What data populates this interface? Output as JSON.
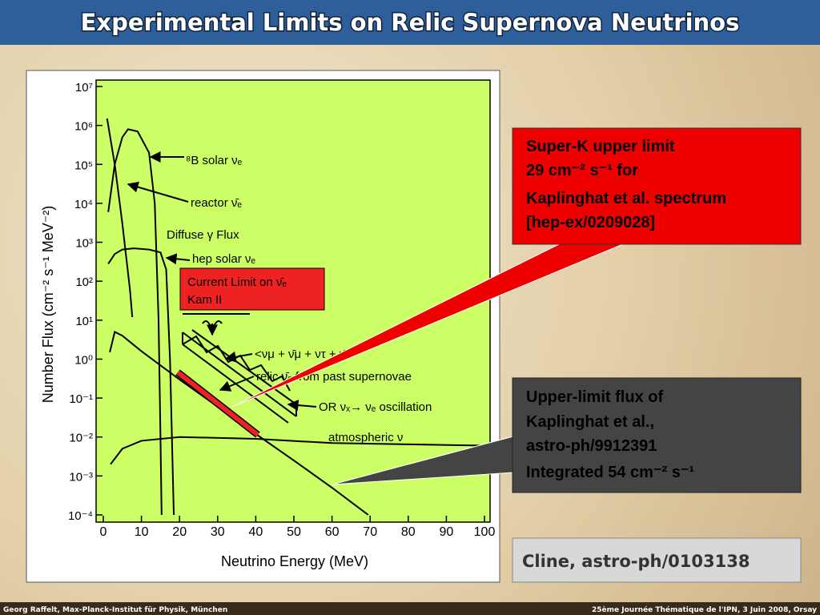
{
  "slide": {
    "title": "Experimental Limits on Relic Supernova Neutrinos",
    "callout_superk": [
      "Super-K  upper limit",
      "29 cm⁻² s⁻¹   for",
      "Kaplinghat et al. spectrum",
      "[hep-ex/0209028]"
    ],
    "callout_upper": [
      "Upper-limit flux of",
      "Kaplinghat et al.,",
      "astro-ph/9912391",
      "Integrated 54 cm⁻² s⁻¹"
    ],
    "citation": "Cline, astro-ph/0103138",
    "footer_left": "Georg Raffelt, Max-Planck-Institut für Physik, München",
    "footer_right": "25ème Journée Thématique de l'IPN, 3 Juin 2008, Orsay"
  },
  "chart_data": {
    "type": "line",
    "x_label": "Neutrino Energy (MeV)",
    "y_label": "Number Flux (cm⁻² s⁻¹ MeV⁻²)",
    "annotations": [
      "⁸B solar νₑ",
      "reactor ν̄ₑ",
      "Diffuse γ Flux",
      "hep solar νₑ",
      "Current Limit on ν̄ₑ",
      "Kam II",
      "<νμ + ν̄μ + ντ + ν̄τ>",
      "relic ν̄ₑ from past supernovae",
      "OR νₓ→ νₑ oscillation",
      "atmospheric ν"
    ],
    "xlim": [
      0,
      100
    ],
    "ylim": [
      0.0001,
      10000000
    ],
    "log_y": true,
    "xticks": [
      0,
      10,
      20,
      30,
      40,
      50,
      60,
      70,
      80,
      90,
      100
    ],
    "yticks": [
      {
        "value": 10000000,
        "label": "10⁷"
      },
      {
        "value": 1000000,
        "label": "10⁶"
      },
      {
        "value": 100000,
        "label": "10⁵"
      },
      {
        "value": 10000,
        "label": "10⁴"
      },
      {
        "value": 1000,
        "label": "10³"
      },
      {
        "value": 100,
        "label": "10²"
      },
      {
        "value": 10,
        "label": "10¹"
      },
      {
        "value": 1,
        "label": "10⁰"
      },
      {
        "value": 0.1,
        "label": "10⁻¹"
      },
      {
        "value": 0.01,
        "label": "10⁻²"
      },
      {
        "value": 0.001,
        "label": "10⁻³"
      },
      {
        "value": 0.0001,
        "label": "10⁻⁴"
      }
    ],
    "series": [
      {
        "color": "#000000",
        "x": [
          1,
          3,
          5,
          7,
          7.6
        ],
        "values": [
          1500000,
          100000,
          3000,
          60,
          12
        ]
      },
      {
        "color": "#000000",
        "x": [
          1.3,
          3,
          5,
          6.5,
          9,
          12,
          13.5,
          14.5,
          15,
          15.3
        ],
        "values": [
          6000,
          100000,
          500000,
          800000,
          700000,
          200000,
          10000,
          10,
          0.01,
          0.0001
        ]
      },
      {
        "color": "#000000",
        "x": [
          1.3,
          3,
          5,
          8,
          12,
          15,
          16.5,
          17.5,
          18,
          18.5
        ],
        "values": [
          280,
          500,
          650,
          700,
          650,
          550,
          200,
          1,
          0.01,
          0.0001
        ]
      },
      {
        "color": "#000000",
        "x": [
          1.7,
          3,
          5,
          10,
          20,
          30,
          40,
          50,
          60,
          69.5
        ],
        "values": [
          1.5,
          5,
          4,
          1.6,
          0.3,
          0.06,
          0.012,
          0.0025,
          0.0005,
          0.0001
        ]
      },
      {
        "color": "#000000",
        "x": [
          1.9,
          5,
          10,
          20,
          40,
          60,
          80,
          100
        ],
        "values": [
          0.002,
          0.005,
          0.008,
          0.01,
          0.009,
          0.007,
          0.0065,
          0.006
        ]
      }
    ]
  }
}
